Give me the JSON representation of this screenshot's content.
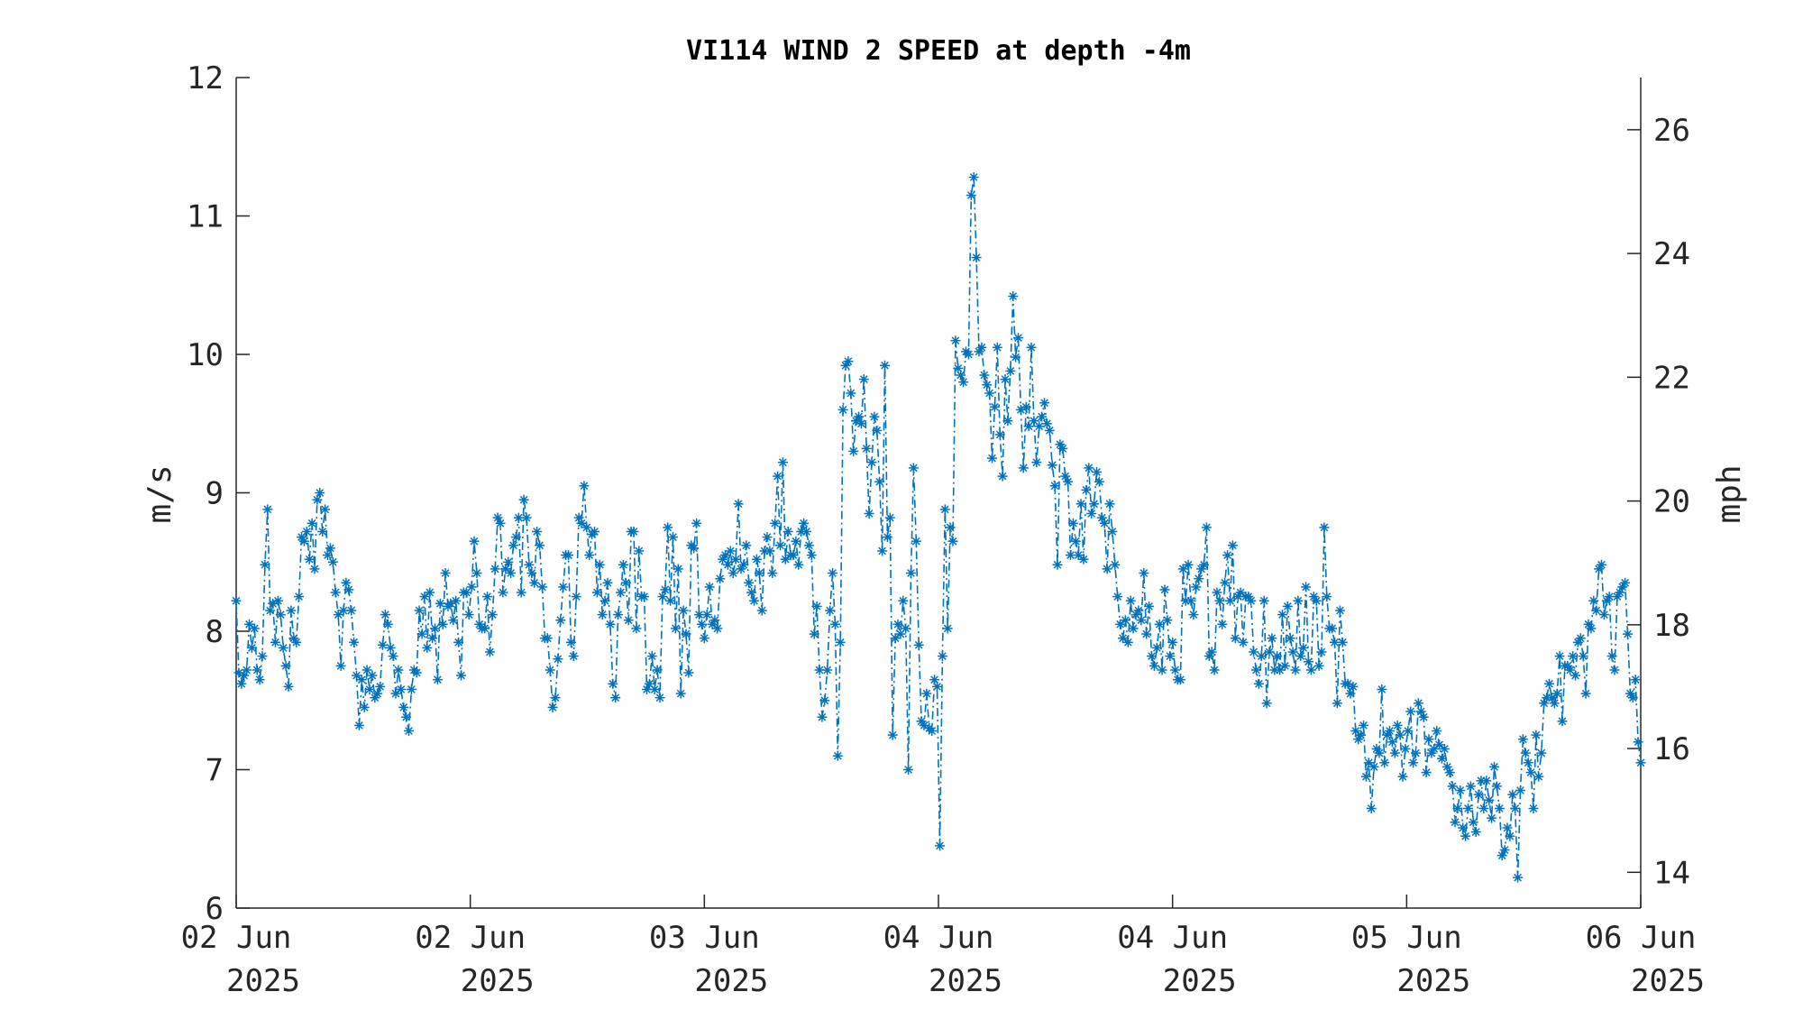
{
  "colors": {
    "series": "#0072BD",
    "axis": "#262626",
    "background": "#ffffff"
  },
  "chart_data": {
    "type": "line",
    "title": "VI114 WIND 2 SPEED at depth -4m",
    "ylabel": "m/s",
    "ylabel_right": "mph",
    "xlim": [
      "2025-06-02T00:00",
      "2025-06-06T00:00"
    ],
    "ylim": [
      6,
      12
    ],
    "ylim_right": [
      13.4216,
      26.8432
    ],
    "yticks": [
      "6",
      "7",
      "8",
      "9",
      "10",
      "11",
      "12"
    ],
    "yticks_right": [
      "14",
      "16",
      "18",
      "20",
      "22",
      "24",
      "26"
    ],
    "xticks": [
      {
        "line1": "02 Jun",
        "line2": "2025"
      },
      {
        "line1": "02 Jun",
        "line2": "2025"
      },
      {
        "line1": "03 Jun",
        "line2": "2025"
      },
      {
        "line1": "04 Jun",
        "line2": "2025"
      },
      {
        "line1": "04 Jun",
        "line2": "2025"
      },
      {
        "line1": "05 Jun",
        "line2": "2025"
      },
      {
        "line1": "06 Jun",
        "line2": "2025"
      }
    ],
    "grid": false,
    "legend": "none",
    "marker": "asterisk",
    "line_style": "dash-dot",
    "series": [
      {
        "x_start": "2025-06-02T00:00",
        "x_end": "2025-06-06T00:00",
        "values": [
          8.22,
          7.7,
          7.62,
          7.68,
          7.72,
          8.05,
          7.88,
          8.02,
          7.72,
          7.65,
          7.82,
          8.48,
          8.88,
          8.15,
          8.2,
          7.92,
          8.22,
          8.12,
          7.88,
          7.75,
          7.6,
          8.15,
          7.95,
          7.92,
          8.25,
          8.68,
          8.65,
          8.72,
          8.52,
          8.78,
          8.45,
          8.95,
          9.0,
          8.72,
          8.88,
          8.55,
          8.6,
          8.5,
          8.28,
          8.12,
          7.75,
          8.15,
          8.35,
          8.3,
          8.15,
          7.92,
          7.68,
          7.32,
          7.65,
          7.45,
          7.72,
          7.58,
          7.68,
          7.52,
          7.55,
          7.6,
          7.9,
          8.12,
          8.05,
          7.88,
          7.82,
          7.55,
          7.72,
          7.58,
          7.45,
          7.38,
          7.28,
          7.58,
          7.72,
          7.7,
          8.15,
          7.98,
          8.25,
          7.88,
          8.28,
          7.95,
          8.02,
          7.65,
          8.2,
          8.05,
          8.42,
          8.18,
          8.2,
          8.08,
          8.22,
          7.92,
          7.68,
          8.28,
          8.28,
          8.12,
          8.32,
          8.65,
          8.42,
          8.05,
          8.02,
          8.02,
          8.25,
          7.85,
          8.12,
          8.45,
          8.82,
          8.78,
          8.28,
          8.45,
          8.5,
          8.42,
          8.62,
          8.68,
          8.82,
          8.28,
          8.95,
          8.82,
          8.48,
          8.42,
          8.35,
          8.72,
          8.62,
          8.32,
          7.95,
          7.95,
          7.72,
          7.45,
          7.52,
          7.8,
          8.08,
          8.32,
          8.55,
          8.55,
          7.92,
          7.82,
          8.25,
          8.82,
          8.78,
          9.05,
          8.75,
          8.55,
          8.7,
          8.72,
          8.28,
          8.48,
          8.12,
          8.22,
          8.35,
          8.05,
          7.62,
          7.52,
          8.12,
          8.28,
          8.48,
          8.35,
          8.08,
          8.72,
          8.72,
          8.02,
          8.58,
          8.25,
          8.25,
          7.58,
          7.62,
          7.82,
          7.58,
          7.72,
          7.52,
          8.25,
          8.3,
          8.75,
          8.22,
          8.68,
          8.02,
          8.45,
          7.55,
          8.15,
          7.98,
          7.7,
          8.62,
          8.6,
          8.78,
          8.12,
          8.05,
          7.95,
          8.12,
          8.32,
          8.05,
          8.08,
          8.02,
          8.38,
          8.52,
          8.55,
          8.48,
          8.58,
          8.42,
          8.52,
          8.92,
          8.45,
          8.48,
          8.62,
          8.35,
          8.28,
          8.22,
          8.52,
          8.42,
          8.15,
          8.58,
          8.68,
          8.58,
          8.42,
          8.78,
          9.12,
          8.62,
          9.22,
          8.52,
          8.72,
          8.55,
          8.55,
          8.65,
          8.48,
          8.72,
          8.78,
          8.72,
          8.62,
          8.55,
          7.98,
          8.18,
          7.72,
          7.38,
          7.5,
          7.72,
          8.15,
          8.42,
          8.05,
          7.1,
          7.92,
          9.6,
          9.92,
          9.95,
          9.72,
          9.3,
          9.52,
          9.55,
          9.5,
          9.82,
          9.32,
          8.85,
          9.22,
          9.55,
          9.45,
          9.08,
          8.58,
          9.92,
          8.68,
          8.82,
          7.25,
          7.95,
          8.05,
          7.98,
          8.22,
          8.02,
          7.0,
          8.42,
          9.18,
          8.65,
          7.9,
          7.35,
          7.32,
          7.55,
          7.3,
          7.28,
          7.65,
          7.6,
          6.45,
          7.82,
          8.88,
          8.02,
          8.75,
          8.65,
          10.1,
          9.9,
          9.85,
          9.8,
          10.02,
          10.0,
          11.15,
          11.28,
          10.7,
          10.02,
          10.05,
          9.85,
          9.78,
          9.72,
          9.25,
          9.62,
          10.05,
          9.42,
          9.12,
          9.82,
          9.52,
          9.88,
          10.42,
          9.98,
          10.12,
          9.6,
          9.18,
          9.62,
          9.48,
          10.05,
          9.52,
          9.22,
          9.48,
          9.55,
          9.65,
          9.5,
          9.45,
          9.2,
          9.05,
          8.48,
          9.35,
          9.32,
          9.12,
          9.08,
          8.55,
          8.78,
          8.65,
          8.55,
          8.92,
          8.52,
          9.02,
          9.18,
          8.85,
          8.92,
          9.15,
          9.08,
          8.82,
          8.78,
          8.45,
          8.92,
          8.72,
          8.48,
          8.25,
          8.05,
          7.95,
          8.08,
          7.92,
          8.22,
          8.02,
          8.12,
          8.15,
          8.08,
          8.42,
          7.98,
          8.18,
          7.82,
          7.75,
          7.88,
          8.05,
          7.72,
          8.3,
          8.08,
          7.82,
          7.92,
          7.72,
          7.65,
          7.65,
          8.45,
          8.22,
          8.48,
          8.22,
          8.12,
          8.32,
          8.38,
          8.45,
          8.48,
          8.75,
          7.82,
          7.85,
          7.72,
          8.28,
          8.22,
          8.05,
          8.35,
          8.55,
          8.22,
          8.62,
          7.95,
          8.25,
          8.28,
          7.92,
          8.25,
          8.25,
          8.22,
          7.85,
          7.72,
          7.62,
          7.82,
          8.22,
          7.48,
          7.85,
          7.95,
          7.72,
          7.82,
          7.72,
          8.12,
          7.75,
          8.18,
          7.95,
          7.85,
          7.72,
          8.22,
          7.82,
          7.88,
          8.32,
          7.78,
          7.72,
          8.25,
          8.22,
          7.75,
          7.85,
          8.75,
          8.25,
          8.02,
          8.02,
          7.92,
          7.48,
          8.15,
          7.92,
          7.62,
          7.62,
          7.55,
          7.6,
          7.28,
          7.22,
          7.25,
          7.32,
          6.95,
          7.05,
          6.72,
          7.02,
          7.15,
          7.12,
          7.58,
          7.05,
          7.25,
          7.28,
          7.2,
          7.12,
          7.32,
          7.25,
          6.95,
          7.15,
          7.28,
          7.42,
          7.05,
          7.12,
          7.48,
          7.42,
          7.38,
          6.98,
          7.22,
          7.12,
          7.15,
          7.28,
          7.18,
          7.08,
          7.15,
          7.02,
          6.98,
          6.88,
          6.62,
          6.72,
          6.85,
          6.58,
          6.52,
          6.72,
          6.88,
          6.62,
          6.55,
          6.82,
          6.92,
          6.72,
          6.92,
          6.78,
          6.65,
          7.02,
          6.88,
          6.72,
          6.38,
          6.42,
          6.58,
          6.52,
          6.82,
          6.72,
          6.22,
          6.85,
          7.22,
          7.12,
          7.05,
          6.98,
          6.72,
          7.25,
          6.95,
          7.12,
          7.48,
          7.52,
          7.62,
          7.52,
          7.48,
          7.55,
          7.82,
          7.35,
          7.75,
          7.75,
          7.72,
          7.82,
          7.68,
          7.92,
          7.95,
          7.82,
          7.55,
          8.05,
          8.02,
          8.22,
          8.15,
          8.45,
          8.48,
          8.12,
          8.22,
          8.25,
          7.82,
          7.72,
          8.25,
          8.28,
          8.32,
          8.35,
          7.98,
          7.55,
          7.52,
          7.65,
          7.2,
          7.05
        ]
      }
    ]
  }
}
